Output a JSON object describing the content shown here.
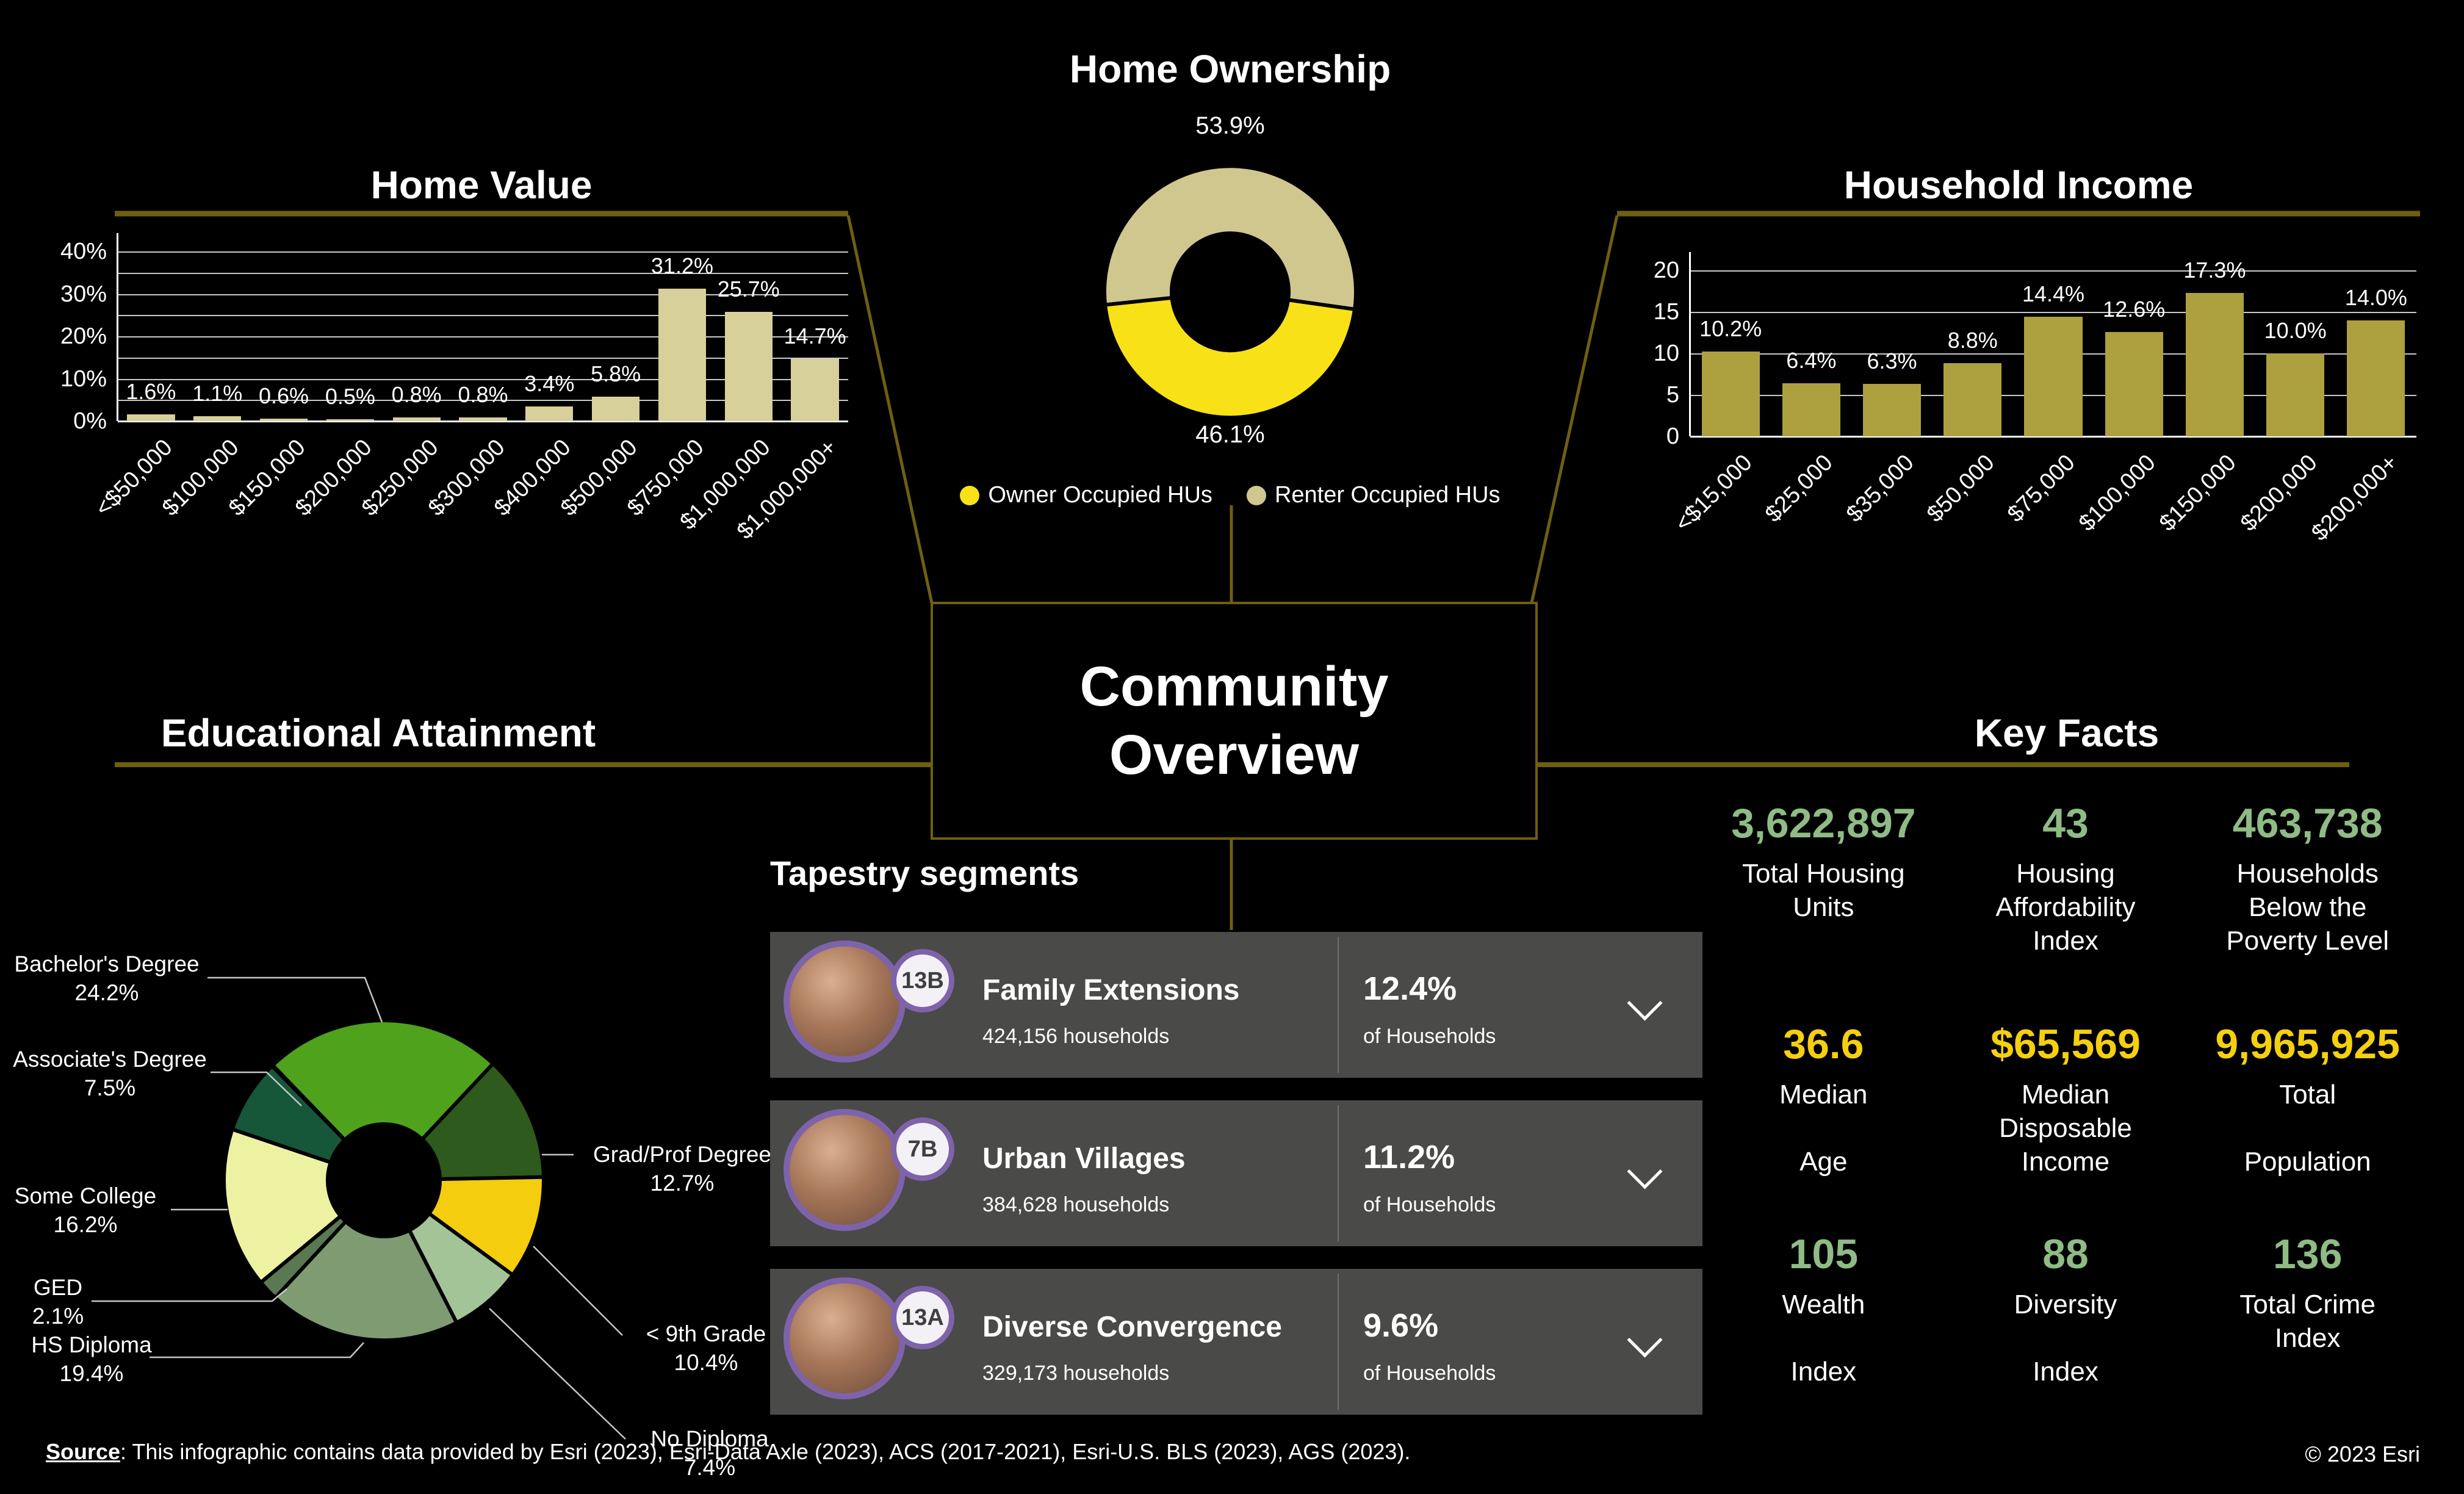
{
  "page": {
    "title": "Community Overview"
  },
  "center": {
    "title": "Community Overview"
  },
  "colors": {
    "background": "#000000",
    "accent_olive": "#6f5f10",
    "home_value_bar": "#d8d09a",
    "income_bar": "#ada03f",
    "owner_yellow": "#f8e116",
    "renter_khaki": "#d0c78f",
    "fact_green": "#8fbb85",
    "fact_yellow": "#f4d00e",
    "tapestry_row_bg": "#4a4a48",
    "tapestry_purple": "#7e63ab"
  },
  "chart_data": [
    {
      "id": "home_value",
      "type": "bar",
      "title": "Home Value",
      "categories": [
        "<$50,000",
        "$100,000",
        "$150,000",
        "$200,000",
        "$250,000",
        "$300,000",
        "$400,000",
        "$500,000",
        "$750,000",
        "$1,000,000",
        "$1,000,000+"
      ],
      "values": [
        1.6,
        1.1,
        0.6,
        0.5,
        0.8,
        0.8,
        3.4,
        5.8,
        31.2,
        25.7,
        14.7
      ],
      "value_labels": [
        "1.6%",
        "1.1%",
        "0.6%",
        "0.5%",
        "0.8%",
        "0.8%",
        "3.4%",
        "5.8%",
        "31.2%",
        "25.7%",
        "14.7%"
      ],
      "xlabel": "",
      "ylabel": "",
      "ylim": [
        0,
        40
      ],
      "ytick_labels": [
        "0%",
        "10%",
        "20%",
        "30%",
        "40%"
      ],
      "grid_interval": 5,
      "grid": true,
      "bar_color": "#d8d09a"
    },
    {
      "id": "home_ownership",
      "type": "pie",
      "donut": true,
      "title": "Home Ownership",
      "start_angle": -96,
      "slices": [
        {
          "label": "Renter Occupied HUs",
          "value": 53.9,
          "pct": "53.9%",
          "color": "#d0c78f"
        },
        {
          "label": "Owner Occupied HUs",
          "value": 46.1,
          "pct": "46.1%",
          "color": "#f8e116"
        }
      ],
      "top_label": "53.9%",
      "bottom_label": "46.1%",
      "legend_position": "bottom",
      "legend": [
        {
          "label": "Owner Occupied HUs",
          "color": "#f8e116"
        },
        {
          "label": "Renter Occupied HUs",
          "color": "#d0c78f"
        }
      ]
    },
    {
      "id": "household_income",
      "type": "bar",
      "title": "Household Income",
      "categories": [
        "<$15,000",
        "$25,000",
        "$35,000",
        "$50,000",
        "$75,000",
        "$100,000",
        "$150,000",
        "$200,000",
        "$200,000+"
      ],
      "values": [
        10.2,
        6.4,
        6.3,
        8.8,
        14.4,
        12.6,
        17.3,
        10.0,
        14.0
      ],
      "value_labels": [
        "10.2%",
        "6.4%",
        "6.3%",
        "8.8%",
        "14.4%",
        "12.6%",
        "17.3%",
        "10.0%",
        "14.0%"
      ],
      "xlabel": "",
      "ylabel": "",
      "ylim": [
        0,
        20
      ],
      "ytick_labels": [
        "0",
        "5",
        "10",
        "15",
        "20"
      ],
      "grid_interval": 5,
      "grid": true,
      "bar_color": "#ada03f"
    },
    {
      "id": "educational_attainment",
      "type": "pie",
      "donut": true,
      "title": "Educational Attainment",
      "start_angle": -44,
      "slices": [
        {
          "label": "Bachelor's Degree",
          "value": 24.2,
          "pct": "24.2%",
          "color": "#4ea21c"
        },
        {
          "label": "Grad/Prof Degree",
          "value": 12.7,
          "pct": "12.7%",
          "color": "#2e5a1d"
        },
        {
          "label": "< 9th Grade",
          "value": 10.4,
          "pct": "10.4%",
          "color": "#f3cd0e"
        },
        {
          "label": "No Diploma",
          "value": 7.4,
          "pct": "7.4%",
          "color": "#a3c497"
        },
        {
          "label": "HS Diploma",
          "value": 19.4,
          "pct": "19.4%",
          "color": "#7e9b72"
        },
        {
          "label": "GED",
          "value": 2.1,
          "pct": "2.1%",
          "color": "#5a7851"
        },
        {
          "label": "Some College",
          "value": 16.2,
          "pct": "16.2%",
          "color": "#ecf2a2"
        },
        {
          "label": "Associate's Degree",
          "value": 7.5,
          "pct": "7.5%",
          "color": "#16573a"
        }
      ]
    }
  ],
  "tapestry": {
    "title": "Tapestry segments",
    "of_households": "of Households",
    "rows": [
      {
        "code": "13B",
        "name": "Family Extensions",
        "households": "424,156 households",
        "pct": "12.4%"
      },
      {
        "code": "7B",
        "name": "Urban Villages",
        "households": "384,628 households",
        "pct": "11.2%"
      },
      {
        "code": "13A",
        "name": "Diverse Convergence",
        "households": "329,173 households",
        "pct": "9.6%"
      }
    ]
  },
  "key_facts": {
    "title": "Key Facts",
    "rows": [
      [
        {
          "value": "3,622,897",
          "color": "#8fbb85",
          "label_lines": [
            "Total Housing",
            "Units"
          ]
        },
        {
          "value": "43",
          "color": "#8fbb85",
          "label_lines": [
            "Housing",
            "Affordability",
            "Index"
          ]
        },
        {
          "value": "463,738",
          "color": "#8fbb85",
          "label_lines": [
            "Households",
            "Below the",
            "Poverty Level"
          ]
        }
      ],
      [
        {
          "value": "36.6",
          "color": "#f4d00e",
          "label_lines": [
            "Median",
            "",
            "Age"
          ]
        },
        {
          "value": "$65,569",
          "color": "#f4d00e",
          "label_lines": [
            "Median",
            "Disposable",
            "Income"
          ]
        },
        {
          "value": "9,965,925",
          "color": "#f4d00e",
          "label_lines": [
            "Total",
            "",
            "Population"
          ]
        }
      ],
      [
        {
          "value": "105",
          "color": "#8fbb85",
          "label_lines": [
            "Wealth",
            "",
            "Index"
          ]
        },
        {
          "value": "88",
          "color": "#8fbb85",
          "label_lines": [
            "Diversity",
            "",
            "Index"
          ]
        },
        {
          "value": "136",
          "color": "#8fbb85",
          "label_lines": [
            "Total Crime",
            "Index"
          ]
        }
      ]
    ]
  },
  "footer": {
    "source_label": "Source",
    "source_text": ": This infographic contains data provided by Esri (2023), Esri-Data Axle (2023), ACS (2017-2021), Esri-U.S. BLS (2023), AGS (2023).",
    "copyright": "© 2023 Esri"
  }
}
